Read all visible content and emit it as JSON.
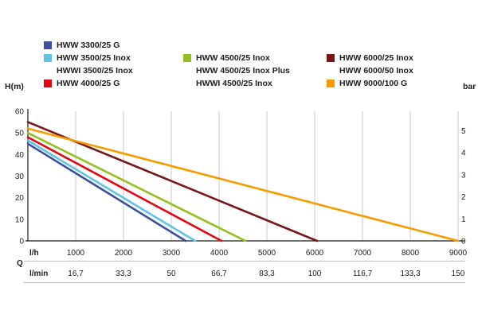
{
  "legend": {
    "columns": [
      {
        "items": [
          {
            "label": "HWW 3300/25 G",
            "swatch": "#3c4f9f"
          },
          {
            "label": "HWW 3500/25 Inox",
            "swatch": "#5fc3e8"
          },
          {
            "label": "HWWI 3500/25 Inox",
            "swatch": null
          },
          {
            "label": "HWW 4000/25 G",
            "swatch": "#e30613"
          }
        ]
      },
      {
        "items": [
          {
            "label": "",
            "swatch": null
          },
          {
            "label": "HWW 4500/25 Inox",
            "swatch": "#94c01f"
          },
          {
            "label": "HWW 4500/25 Inox Plus",
            "swatch": null
          },
          {
            "label": "HWWI 4500/25 Inox",
            "swatch": null
          }
        ]
      },
      {
        "items": [
          {
            "label": "",
            "swatch": null
          },
          {
            "label": "HWW 6000/25 Inox",
            "swatch": "#7a1517"
          },
          {
            "label": "HWW 6000/50 Inox",
            "swatch": null
          },
          {
            "label": "HWW 9000/100 G",
            "swatch": "#f59c00"
          }
        ]
      }
    ]
  },
  "chart_data": {
    "type": "line",
    "title": "",
    "legend_position": "top",
    "grid": "vertical",
    "ylabel_left": "H(m)",
    "ylabel_right": "bar",
    "xlabel_primary": "l/h",
    "xlabel_secondary": "l/min",
    "flow_axis_label": "Q",
    "xlim": [
      0,
      9000
    ],
    "ylim_left": [
      0,
      60
    ],
    "y_ticks_left": [
      0,
      10,
      20,
      30,
      40,
      50,
      60
    ],
    "y_ticks_right": [
      0,
      1,
      2,
      3,
      4,
      5
    ],
    "bar_to_meter": 10.2,
    "x_ticks_lh": [
      "1000",
      "2000",
      "3000",
      "4000",
      "5000",
      "6000",
      "7000",
      "8000",
      "9000"
    ],
    "x_ticks_lmin": [
      "16,7",
      "33,3",
      "50",
      "66,7",
      "83,3",
      "100",
      "116,7",
      "133,3",
      "150"
    ],
    "series": [
      {
        "name": "HWW 3300/25 G",
        "color": "#3c4f9f",
        "points": [
          [
            0,
            45
          ],
          [
            3300,
            0
          ]
        ]
      },
      {
        "name": "HWW 3500/25 Inox",
        "color": "#5fc3e8",
        "points": [
          [
            0,
            46.5
          ],
          [
            3500,
            0
          ]
        ]
      },
      {
        "name": "HWW 4000/25 G",
        "color": "#e30613",
        "points": [
          [
            0,
            48
          ],
          [
            4050,
            0
          ]
        ]
      },
      {
        "name": "HWW 4500/25 Inox",
        "color": "#94c01f",
        "points": [
          [
            0,
            50
          ],
          [
            4550,
            0
          ]
        ]
      },
      {
        "name": "HWW 6000/25 Inox",
        "color": "#7a1517",
        "points": [
          [
            0,
            55
          ],
          [
            6050,
            0
          ]
        ]
      },
      {
        "name": "HWW 9000/100 G",
        "color": "#f59c00",
        "points": [
          [
            0,
            52
          ],
          [
            9000,
            0
          ]
        ]
      }
    ],
    "colors": {
      "grid": "#c9c9c9",
      "axis": "#1d1d1b",
      "separator": "#c3c3c3",
      "text": "#1d1d1b"
    }
  }
}
